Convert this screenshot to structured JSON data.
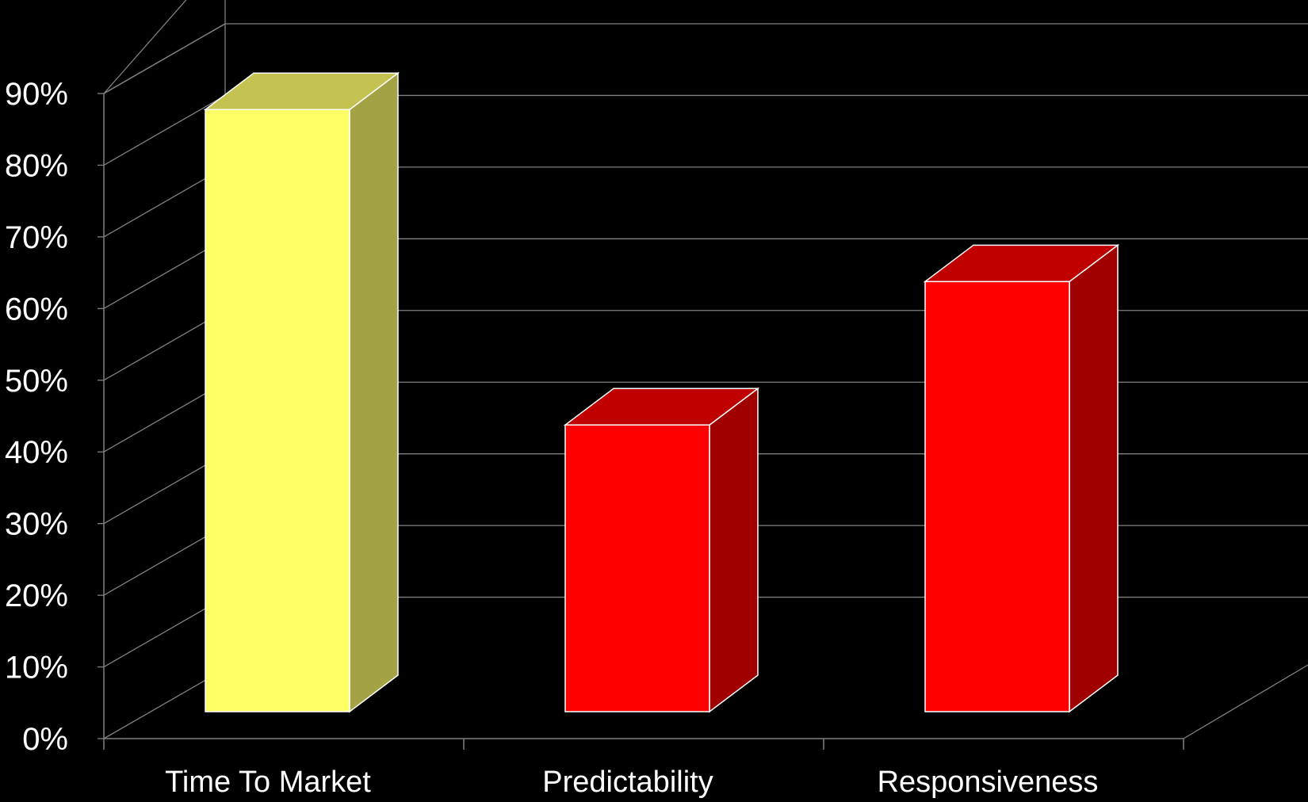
{
  "chart_data": {
    "type": "bar",
    "title": "",
    "xlabel": "",
    "ylabel": "",
    "categories": [
      "Time To Market",
      "Predictability",
      "Responsiveness"
    ],
    "values": [
      84,
      40,
      60
    ],
    "value_unit": "%",
    "ylim": [
      0,
      90
    ],
    "y_ticks": [
      "0%",
      "10%",
      "20%",
      "30%",
      "40%",
      "50%",
      "60%",
      "70%",
      "80%",
      "90%"
    ],
    "grid": true,
    "legend": "none",
    "style": "3d",
    "bar_colors": [
      {
        "front": "#ffff66",
        "side": "#a3a345",
        "top": "#c4c250"
      },
      {
        "front": "#ff0000",
        "side": "#a00000",
        "top": "#c00000"
      },
      {
        "front": "#ff0000",
        "side": "#a00000",
        "top": "#c00000"
      }
    ],
    "background_color": "#000000",
    "grid_color": "#808080",
    "text_color": "#ffffff"
  }
}
